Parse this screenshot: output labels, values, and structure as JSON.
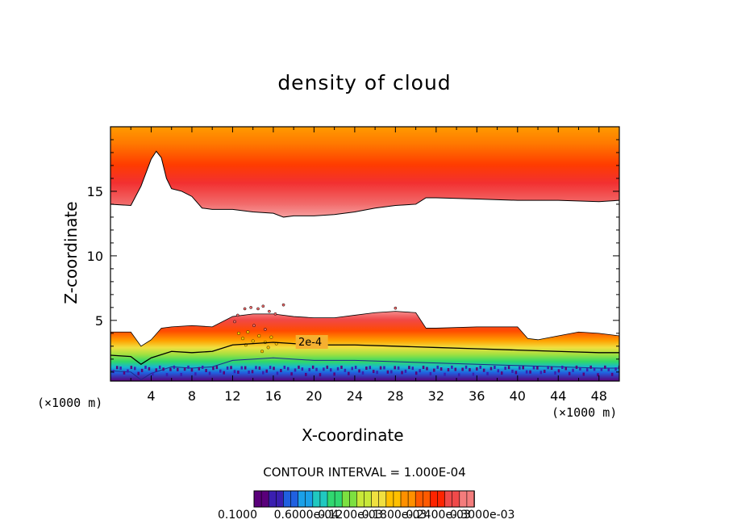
{
  "chart_data": {
    "type": "heatmap",
    "title": "density of cloud",
    "xlabel": "X-coordinate",
    "ylabel": "Z-coordinate",
    "x_unit_label": "(×1000 m)",
    "xlim": [
      0,
      50
    ],
    "ylim": [
      0.3,
      20
    ],
    "x_ticks": [
      4,
      8,
      12,
      16,
      20,
      24,
      28,
      32,
      36,
      40,
      44,
      48
    ],
    "y_ticks": [
      5,
      10,
      15
    ],
    "contour_interval_label": "CONTOUR INTERVAL = 1.000E-04",
    "contour_label": "2e-4",
    "colorbar_levels": [
      0.1,
      0.2,
      0.3,
      0.4,
      0.5,
      0.6,
      0.7,
      0.8,
      0.9,
      1.0,
      1.1,
      1.2,
      1.3,
      1.4,
      1.5,
      1.6,
      1.7,
      1.8,
      1.9,
      2.0,
      2.1,
      2.2,
      2.3,
      2.4,
      2.5,
      2.6,
      2.7,
      2.8,
      2.9,
      3.0
    ],
    "colorbar_tick_labels": [
      "0.1000",
      "0.6000e-04",
      "0.1200e-03",
      "0.1800e-03",
      "0.2400e-03",
      "0.3000e-03"
    ],
    "colormap": [
      "#5a007a",
      "#3a1fb0",
      "#2060e0",
      "#1aa0e8",
      "#20c8c0",
      "#30d870",
      "#7ce040",
      "#c8e838",
      "#f0e040",
      "#ffc000",
      "#ff9000",
      "#ff5a00",
      "#ff2400",
      "#f04a4a",
      "#f47c7c"
    ],
    "upper_layer": {
      "cloud_base_x": [
        0,
        2,
        3,
        4,
        4.5,
        5,
        5.5,
        6,
        7,
        8,
        9,
        10,
        12,
        14,
        16,
        17,
        18,
        20,
        22,
        24,
        26,
        28,
        30,
        31,
        32,
        36,
        40,
        44,
        48,
        50
      ],
      "cloud_base_z": [
        14.0,
        13.9,
        15.4,
        17.5,
        18.1,
        17.6,
        16.0,
        15.2,
        15.0,
        14.6,
        13.7,
        13.6,
        13.6,
        13.4,
        13.3,
        13.0,
        13.1,
        13.1,
        13.2,
        13.4,
        13.7,
        13.9,
        14.0,
        14.5,
        14.5,
        14.4,
        14.3,
        14.3,
        14.2,
        14.3
      ]
    },
    "lower_layer": {
      "cloud_top_x": [
        0,
        2,
        3,
        4,
        5,
        6,
        8,
        10,
        12,
        14,
        16,
        18,
        20,
        22,
        24,
        26,
        28,
        30,
        31,
        32,
        36,
        40,
        41,
        42,
        44,
        46,
        48,
        50
      ],
      "cloud_top_z": [
        4.1,
        4.1,
        3.0,
        3.5,
        4.4,
        4.5,
        4.6,
        4.5,
        5.3,
        5.5,
        5.5,
        5.3,
        5.2,
        5.2,
        5.4,
        5.6,
        5.7,
        5.6,
        4.4,
        4.4,
        4.5,
        4.5,
        3.6,
        3.5,
        3.8,
        4.1,
        4.0,
        3.8
      ],
      "contour_2e-4_x": [
        0,
        2,
        3,
        4,
        6,
        8,
        10,
        12,
        14,
        16,
        18,
        20,
        24,
        28,
        32,
        36,
        40,
        44,
        48,
        50
      ],
      "contour_2e-4_z": [
        2.3,
        2.2,
        1.6,
        2.1,
        2.6,
        2.5,
        2.6,
        3.1,
        3.2,
        3.3,
        3.2,
        3.1,
        3.1,
        3.0,
        2.9,
        2.8,
        2.7,
        2.6,
        2.5,
        2.5
      ],
      "cloud_bottom_z": 0.5
    }
  }
}
